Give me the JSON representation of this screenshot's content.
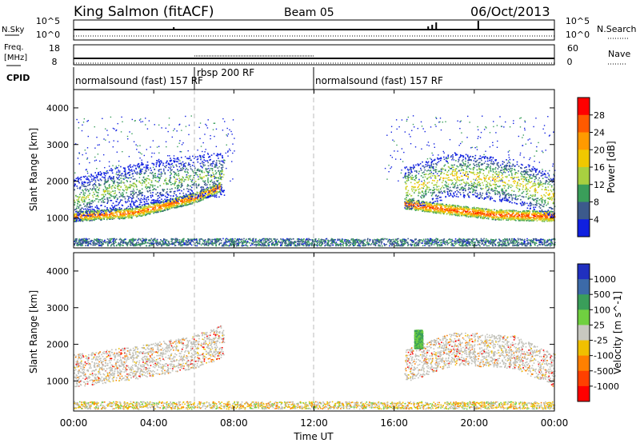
{
  "header": {
    "station": "King Salmon (fitACF)",
    "beam": "Beam 05",
    "date": "06/Oct/2013"
  },
  "top_panels": {
    "nsky_label": "N.Sky",
    "nsearch_label": "N.Search",
    "freq_label_1": "Freq.",
    "freq_label_2": "[MHz]",
    "nave_label": "Nave",
    "cpid_label": "CPID",
    "count_ticks_left": [
      "10^5",
      "10^0"
    ],
    "count_ticks_right": [
      "10^5",
      "10^0"
    ],
    "freq_ticks": [
      "18",
      "8"
    ],
    "nave_ticks": [
      "60",
      "0"
    ],
    "cpid_segments": [
      {
        "label": "normalsound (fast) 157 RF",
        "start_h": 0.0,
        "end_h": 6.0
      },
      {
        "label": "rbsp 200 RF",
        "start_h": 6.0,
        "end_h": 12.0
      },
      {
        "label": "normalsound (fast) 157 RF",
        "start_h": 12.0,
        "end_h": 24.0
      }
    ]
  },
  "power_panel": {
    "ylabel": "Slant Range [km]",
    "colorbar_label": "Power [dB]",
    "colorbar_ticks": [
      "28",
      "24",
      "20",
      "16",
      "12",
      "8",
      "4"
    ],
    "colors": [
      "#ff0000",
      "#ff5a00",
      "#ff9a00",
      "#f0c800",
      "#a8d040",
      "#3a9e5a",
      "#3c5a8c",
      "#1020e0"
    ]
  },
  "velocity_panel": {
    "ylabel": "Slant Range [km]",
    "colorbar_label": "Velocity [m s^-1]",
    "colorbar_ticks": [
      "1000",
      "500",
      "100",
      "25",
      "-25",
      "-100",
      "-500",
      "-1000"
    ],
    "colors": [
      "#2030c0",
      "#3c6aa8",
      "#3a9e5a",
      "#70d040",
      "#c8c8c0",
      "#f0c000",
      "#ff8000",
      "#ff4000",
      "#ff0000"
    ],
    "ground_scatter_color": "#c0c0b8"
  },
  "x_axis": {
    "label": "Time UT",
    "ticks": [
      "00:00",
      "04:00",
      "08:00",
      "12:00",
      "16:00",
      "20:00",
      "00:00"
    ]
  },
  "chart_data": [
    {
      "type": "heatmap",
      "title": "Power",
      "xlabel": "Time UT",
      "ylabel": "Slant Range [km]",
      "xlim": [
        0,
        24
      ],
      "ylim": [
        180,
        4500
      ],
      "yticks": [
        1000,
        2000,
        3000,
        4000
      ],
      "colorbar": {
        "label": "Power [dB]",
        "range": [
          0,
          32
        ]
      },
      "features": [
        {
          "name": "e-region band",
          "t": [
            0,
            3,
            6,
            7.3
          ],
          "r": [
            1050,
            1150,
            1550,
            1850
          ],
          "power": 26
        },
        {
          "name": "f-region scatter",
          "t": [
            0,
            2,
            4,
            7.5
          ],
          "r": [
            1500,
            1800,
            2000,
            2200
          ],
          "power": 14
        },
        {
          "name": "near-range echoes",
          "t": [
            0,
            24
          ],
          "r": [
            250,
            450
          ],
          "power": 6
        },
        {
          "name": "evening band",
          "t": [
            16.5,
            18.5,
            21,
            24
          ],
          "r": [
            1400,
            1250,
            1100,
            1050
          ],
          "power": 28
        },
        {
          "name": "evening f-region",
          "t": [
            16.5,
            19,
            22,
            24
          ],
          "r": [
            1800,
            2200,
            2000,
            1600
          ],
          "power": 18
        }
      ]
    },
    {
      "type": "heatmap",
      "title": "Velocity",
      "xlabel": "Time UT",
      "ylabel": "Slant Range [km]",
      "xlim": [
        0,
        24
      ],
      "ylim": [
        180,
        4500
      ],
      "yticks": [
        1000,
        2000,
        3000,
        4000
      ],
      "colorbar": {
        "label": "Velocity [m s^-1]",
        "range": [
          -1000,
          1000
        ]
      },
      "features": [
        {
          "name": "ground scatter morning",
          "t": [
            0,
            3,
            6,
            7.5
          ],
          "r": [
            1300,
            1500,
            1800,
            2100
          ],
          "velocity": 0
        },
        {
          "name": "mixed near range",
          "t": [
            0,
            24
          ],
          "r": [
            250,
            450
          ],
          "velocity": -50
        },
        {
          "name": "evening ground scatter",
          "t": [
            16.5,
            19,
            22,
            24
          ],
          "r": [
            1400,
            1900,
            1800,
            1300
          ],
          "velocity": 0
        },
        {
          "name": "evening positive",
          "t": [
            17.0,
            17.4
          ],
          "r": [
            1900,
            2400
          ],
          "velocity": 120
        }
      ]
    }
  ]
}
